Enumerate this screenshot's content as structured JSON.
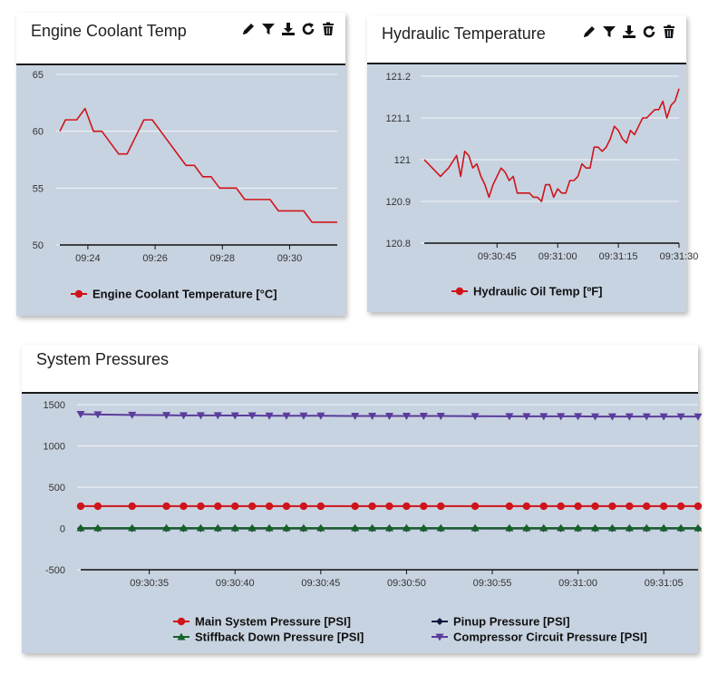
{
  "panels": {
    "coolant": {
      "title": "Engine Coolant Temp"
    },
    "hydraulic": {
      "title": "Hydraulic Temperature"
    },
    "pressures": {
      "title": "System Pressures"
    }
  },
  "toolbar_icons": [
    "pencil-icon",
    "filter-icon",
    "download-icon",
    "refresh-icon",
    "trash-icon"
  ],
  "chart_data": [
    {
      "id": "coolant",
      "type": "line",
      "title": "",
      "xlabel": "",
      "ylabel": "",
      "x_ticks": [
        "09:24",
        "09:26",
        "09:28",
        "09:30"
      ],
      "x_range": [
        "09:23:10",
        "09:31:25"
      ],
      "x": [
        "09:23:10",
        "09:23:20",
        "09:23:40",
        "09:23:55",
        "09:24:10",
        "09:24:25",
        "09:24:40",
        "09:24:55",
        "09:25:10",
        "09:25:25",
        "09:25:40",
        "09:25:55",
        "09:26:10",
        "09:26:25",
        "09:26:40",
        "09:26:55",
        "09:27:10",
        "09:27:25",
        "09:27:40",
        "09:27:55",
        "09:28:10",
        "09:28:25",
        "09:28:40",
        "09:28:55",
        "09:29:10",
        "09:29:25",
        "09:29:40",
        "09:29:55",
        "09:30:10",
        "09:30:25",
        "09:30:40",
        "09:30:55",
        "09:31:10",
        "09:31:25"
      ],
      "y_ticks": [
        50,
        55,
        60,
        65
      ],
      "ylim": [
        50,
        65
      ],
      "grid": true,
      "legend_position": "bottom",
      "series": [
        {
          "name": "Engine Coolant Temperature [°C]",
          "color": "#d0141b",
          "values": [
            60,
            61,
            61,
            62,
            60,
            60,
            59,
            58,
            58,
            59.5,
            61,
            61,
            60,
            59,
            58,
            57,
            57,
            56,
            56,
            55,
            55,
            55,
            54,
            54,
            54,
            54,
            53,
            53,
            53,
            53,
            52,
            52,
            52,
            52
          ]
        }
      ]
    },
    {
      "id": "hydraulic",
      "type": "line",
      "title": "",
      "xlabel": "",
      "ylabel": "",
      "x_ticks": [
        "09:30:45",
        "09:31:00",
        "09:31:15",
        "09:31:30"
      ],
      "x_range": [
        "09:30:27",
        "09:31:30"
      ],
      "x": [
        "09:30:27",
        "09:30:29",
        "09:30:31",
        "09:30:33",
        "09:30:35",
        "09:30:36",
        "09:30:37",
        "09:30:38",
        "09:30:39",
        "09:30:40",
        "09:30:41",
        "09:30:42",
        "09:30:43",
        "09:30:44",
        "09:30:45",
        "09:30:46",
        "09:30:47",
        "09:30:48",
        "09:30:49",
        "09:30:50",
        "09:30:51",
        "09:30:52",
        "09:30:53",
        "09:30:54",
        "09:30:55",
        "09:30:56",
        "09:30:57",
        "09:30:58",
        "09:30:59",
        "09:31:00",
        "09:31:01",
        "09:31:02",
        "09:31:03",
        "09:31:04",
        "09:31:05",
        "09:31:06",
        "09:31:07",
        "09:31:08",
        "09:31:09",
        "09:31:10",
        "09:31:11",
        "09:31:12",
        "09:31:13",
        "09:31:14",
        "09:31:15",
        "09:31:16",
        "09:31:17",
        "09:31:18",
        "09:31:19",
        "09:31:20",
        "09:31:21",
        "09:31:22",
        "09:31:23",
        "09:31:24",
        "09:31:25",
        "09:31:26",
        "09:31:27",
        "09:31:28",
        "09:31:29",
        "09:31:30"
      ],
      "y_ticks": [
        120.8,
        120.9,
        121,
        121.1,
        121.2
      ],
      "ylim": [
        120.8,
        121.2
      ],
      "grid": true,
      "legend_position": "bottom",
      "series": [
        {
          "name": "Hydraulic Oil Temp [ºF]",
          "color": "#d0141b",
          "values": [
            121.0,
            120.98,
            120.96,
            120.98,
            121.01,
            120.96,
            121.02,
            121.01,
            120.98,
            120.99,
            120.96,
            120.94,
            120.91,
            120.94,
            120.96,
            120.98,
            120.97,
            120.95,
            120.96,
            120.92,
            120.92,
            120.92,
            120.92,
            120.91,
            120.91,
            120.9,
            120.94,
            120.94,
            120.91,
            120.93,
            120.92,
            120.92,
            120.95,
            120.95,
            120.96,
            120.99,
            120.98,
            120.98,
            121.03,
            121.03,
            121.02,
            121.03,
            121.05,
            121.08,
            121.07,
            121.05,
            121.04,
            121.07,
            121.06,
            121.08,
            121.1,
            121.1,
            121.11,
            121.12,
            121.12,
            121.14,
            121.1,
            121.13,
            121.14,
            121.17
          ]
        }
      ]
    },
    {
      "id": "pressures",
      "type": "line",
      "title": "",
      "xlabel": "",
      "ylabel": "",
      "x_ticks": [
        "09:30:35",
        "09:30:40",
        "09:30:45",
        "09:30:50",
        "09:30:55",
        "09:31:00",
        "09:31:05"
      ],
      "x_range": [
        "09:30:31",
        "09:31:07"
      ],
      "x": [
        "09:30:31",
        "09:30:32",
        "09:30:34",
        "09:30:36",
        "09:30:37",
        "09:30:38",
        "09:30:39",
        "09:30:40",
        "09:30:41",
        "09:30:42",
        "09:30:43",
        "09:30:44",
        "09:30:45",
        "09:30:47",
        "09:30:48",
        "09:30:49",
        "09:30:50",
        "09:30:51",
        "09:30:52",
        "09:30:54",
        "09:30:56",
        "09:30:57",
        "09:30:58",
        "09:30:59",
        "09:31:00",
        "09:31:01",
        "09:31:02",
        "09:31:03",
        "09:31:04",
        "09:31:05",
        "09:31:06",
        "09:31:07"
      ],
      "y_ticks": [
        -500,
        0,
        500,
        1000,
        1500
      ],
      "ylim": [
        -500,
        1500
      ],
      "grid": true,
      "legend_position": "bottom",
      "series": [
        {
          "name": "Main System Pressure [PSI]",
          "color": "#d0141b",
          "marker": "circle",
          "values": [
            270,
            270,
            270,
            270,
            270,
            270,
            270,
            270,
            270,
            270,
            270,
            270,
            270,
            270,
            270,
            270,
            270,
            270,
            270,
            270,
            270,
            270,
            270,
            270,
            270,
            270,
            270,
            270,
            270,
            270,
            270,
            270
          ]
        },
        {
          "name": "Pinup Pressure [PSI]",
          "color": "#0d1a3d",
          "marker": "diamond",
          "values": [
            0,
            0,
            0,
            0,
            0,
            0,
            0,
            0,
            0,
            0,
            0,
            0,
            0,
            0,
            0,
            0,
            0,
            0,
            0,
            0,
            0,
            0,
            0,
            0,
            0,
            0,
            0,
            0,
            0,
            0,
            0,
            0
          ]
        },
        {
          "name": "Stiffback Down Pressure [PSI]",
          "color": "#17612a",
          "marker": "triangle-up",
          "values": [
            5,
            5,
            5,
            5,
            5,
            5,
            5,
            5,
            5,
            5,
            5,
            5,
            5,
            5,
            5,
            5,
            5,
            5,
            5,
            5,
            5,
            5,
            5,
            5,
            5,
            5,
            5,
            5,
            5,
            5,
            5,
            5
          ]
        },
        {
          "name": "Compressor Circuit Pressure [PSI]",
          "color": "#5a3c9c",
          "marker": "triangle-down",
          "values": [
            1385,
            1380,
            1375,
            1372,
            1370,
            1370,
            1370,
            1368,
            1368,
            1365,
            1365,
            1365,
            1365,
            1362,
            1362,
            1362,
            1362,
            1362,
            1362,
            1360,
            1358,
            1358,
            1358,
            1358,
            1358,
            1356,
            1356,
            1356,
            1356,
            1356,
            1356,
            1355
          ]
        }
      ]
    }
  ]
}
